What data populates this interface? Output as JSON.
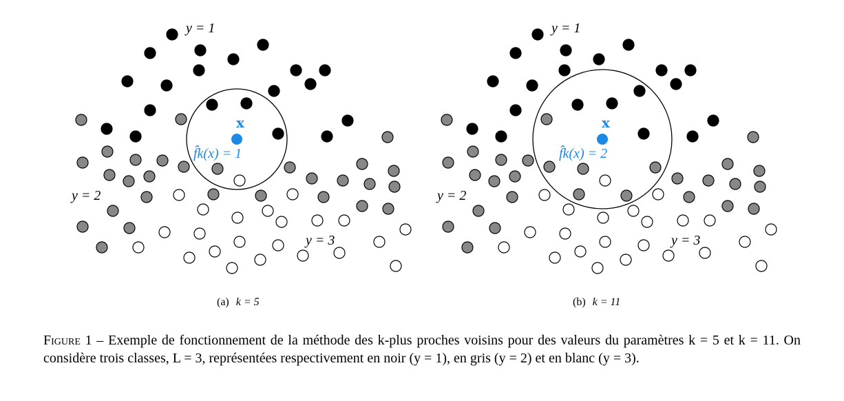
{
  "colors": {
    "class1_black": "#000000",
    "class2_gray": "#888888",
    "class3_white": "#ffffff",
    "query_blue": "#1e88e5",
    "stroke": "#000000"
  },
  "panels": [
    {
      "caption_letter": "(a)",
      "caption_math": "k = 5",
      "query_label": "x",
      "prediction_label": "f̂k(x) = 1",
      "class_labels": [
        "y = 1",
        "y = 2",
        "y = 3"
      ]
    },
    {
      "caption_letter": "(b)",
      "caption_math": "k = 11",
      "query_label": "x",
      "prediction_label": "f̂k(x) = 2",
      "class_labels": [
        "y = 1",
        "y = 2",
        "y = 3"
      ]
    }
  ],
  "caption": {
    "prefix": "Figure 1",
    "body": " – Exemple de fonctionnement de la méthode des k-plus proches voisins pour des valeurs du paramètres k = 5 et k = 11. On considère trois classes, L = 3, représentées respectivement en noir (y = 1), en gris (y = 2) et en blanc (y = 3)."
  }
}
